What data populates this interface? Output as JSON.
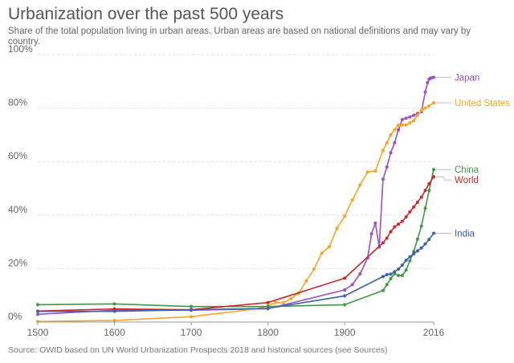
{
  "chart_data": {
    "type": "line",
    "title": "Urbanization over the past 500 years",
    "subtitle": "Share of the total population living in urban areas. Urban areas are based on national definitions and may vary by country.",
    "source": "OWID based on UN World Urbanization Prospects 2018 and historical sources (see Sources)",
    "xlabel": "",
    "ylabel": "",
    "xlim": [
      1500,
      2016
    ],
    "ylim": [
      0,
      100
    ],
    "x_ticks": [
      1500,
      1600,
      1700,
      1800,
      1900,
      2016
    ],
    "y_ticks": [
      0,
      20,
      40,
      60,
      80,
      100
    ],
    "y_tick_labels": [
      "0%",
      "20%",
      "40%",
      "60%",
      "80%",
      "100%"
    ],
    "grid": true,
    "series": [
      {
        "name": "Japan",
        "color": "#9b4fc4",
        "points": [
          [
            1500,
            2.9
          ],
          [
            1600,
            4.4
          ],
          [
            1700,
            4.4
          ],
          [
            1800,
            5.0
          ],
          [
            1900,
            12.0
          ],
          [
            1910,
            14.0
          ],
          [
            1920,
            18.0
          ],
          [
            1930,
            24.0
          ],
          [
            1935,
            33.0
          ],
          [
            1940,
            37.0
          ],
          [
            1945,
            28.0
          ],
          [
            1950,
            53.4
          ],
          [
            1955,
            58.0
          ],
          [
            1960,
            63.3
          ],
          [
            1965,
            67.0
          ],
          [
            1970,
            71.9
          ],
          [
            1975,
            75.7
          ],
          [
            1980,
            76.2
          ],
          [
            1985,
            76.7
          ],
          [
            1990,
            77.3
          ],
          [
            1995,
            78.0
          ],
          [
            2000,
            78.6
          ],
          [
            2005,
            86.0
          ],
          [
            2008,
            89.5
          ],
          [
            2010,
            90.8
          ],
          [
            2012,
            91.2
          ],
          [
            2014,
            91.4
          ],
          [
            2016,
            91.5
          ]
        ]
      },
      {
        "name": "United States",
        "color": "#f5a623",
        "points": [
          [
            1500,
            0.2
          ],
          [
            1600,
            0.6
          ],
          [
            1700,
            2.0
          ],
          [
            1790,
            5.1
          ],
          [
            1800,
            6.1
          ],
          [
            1810,
            7.3
          ],
          [
            1820,
            7.2
          ],
          [
            1830,
            8.8
          ],
          [
            1840,
            10.8
          ],
          [
            1850,
            15.4
          ],
          [
            1860,
            19.8
          ],
          [
            1870,
            25.7
          ],
          [
            1880,
            28.2
          ],
          [
            1890,
            35.1
          ],
          [
            1900,
            39.6
          ],
          [
            1910,
            45.6
          ],
          [
            1920,
            51.2
          ],
          [
            1930,
            56.1
          ],
          [
            1940,
            56.5
          ],
          [
            1950,
            64.2
          ],
          [
            1955,
            67.0
          ],
          [
            1960,
            70.0
          ],
          [
            1965,
            71.9
          ],
          [
            1970,
            73.6
          ],
          [
            1975,
            73.7
          ],
          [
            1980,
            73.7
          ],
          [
            1985,
            74.5
          ],
          [
            1990,
            75.3
          ],
          [
            1995,
            77.3
          ],
          [
            2000,
            79.1
          ],
          [
            2005,
            80.0
          ],
          [
            2010,
            80.8
          ],
          [
            2016,
            82.0
          ]
        ]
      },
      {
        "name": "China",
        "color": "#3d9a40",
        "points": [
          [
            1500,
            6.5
          ],
          [
            1600,
            6.8
          ],
          [
            1700,
            5.8
          ],
          [
            1800,
            5.8
          ],
          [
            1900,
            6.5
          ],
          [
            1950,
            11.8
          ],
          [
            1955,
            14.0
          ],
          [
            1960,
            16.2
          ],
          [
            1965,
            18.1
          ],
          [
            1970,
            17.4
          ],
          [
            1975,
            17.4
          ],
          [
            1980,
            19.4
          ],
          [
            1985,
            22.9
          ],
          [
            1990,
            26.4
          ],
          [
            1995,
            31.0
          ],
          [
            2000,
            35.9
          ],
          [
            2005,
            42.5
          ],
          [
            2010,
            49.2
          ],
          [
            2016,
            57.0
          ]
        ]
      },
      {
        "name": "World",
        "color": "#c92a2a",
        "points": [
          [
            1500,
            4.1
          ],
          [
            1600,
            4.9
          ],
          [
            1700,
            4.6
          ],
          [
            1800,
            7.3
          ],
          [
            1900,
            16.4
          ],
          [
            1950,
            29.6
          ],
          [
            1955,
            31.4
          ],
          [
            1960,
            33.8
          ],
          [
            1965,
            35.6
          ],
          [
            1970,
            36.6
          ],
          [
            1975,
            37.7
          ],
          [
            1980,
            39.3
          ],
          [
            1985,
            41.2
          ],
          [
            1990,
            43.0
          ],
          [
            1995,
            44.8
          ],
          [
            2000,
            46.7
          ],
          [
            2005,
            49.2
          ],
          [
            2010,
            51.7
          ],
          [
            2016,
            54.3
          ]
        ]
      },
      {
        "name": "India",
        "color": "#3a62b0",
        "points": [
          [
            1500,
            4.0
          ],
          [
            1600,
            4.0
          ],
          [
            1700,
            4.6
          ],
          [
            1800,
            5.1
          ],
          [
            1900,
            9.8
          ],
          [
            1950,
            17.0
          ],
          [
            1955,
            17.7
          ],
          [
            1960,
            17.9
          ],
          [
            1965,
            18.8
          ],
          [
            1970,
            19.8
          ],
          [
            1975,
            21.3
          ],
          [
            1980,
            23.1
          ],
          [
            1985,
            24.4
          ],
          [
            1990,
            25.5
          ],
          [
            1995,
            26.6
          ],
          [
            2000,
            27.7
          ],
          [
            2005,
            29.2
          ],
          [
            2010,
            30.9
          ],
          [
            2016,
            33.2
          ]
        ]
      }
    ],
    "end_labels": [
      {
        "series": "Japan",
        "label": "Japan"
      },
      {
        "series": "United States",
        "label": "United States"
      },
      {
        "series": "China",
        "label": "China"
      },
      {
        "series": "World",
        "label": "World"
      },
      {
        "series": "India",
        "label": "India"
      }
    ]
  }
}
